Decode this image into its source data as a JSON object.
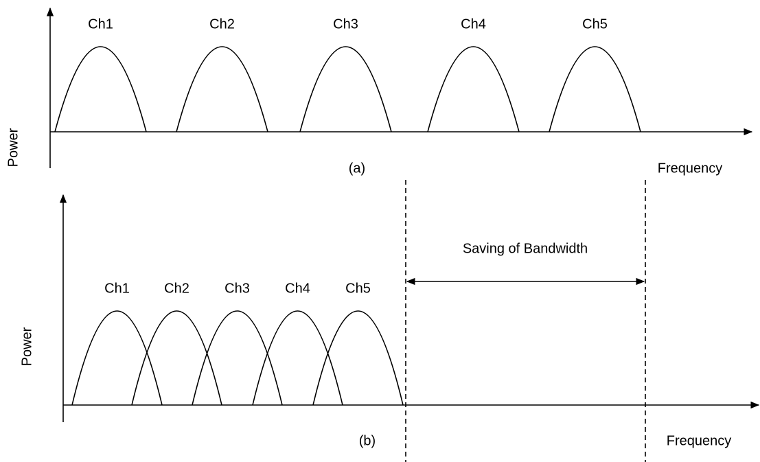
{
  "panel_a": {
    "channels": [
      "Ch1",
      "Ch2",
      "Ch3",
      "Ch4",
      "Ch5"
    ],
    "y_label": "Power",
    "x_label": "Frequency",
    "caption": "(a)"
  },
  "panel_b": {
    "channels": [
      "Ch1",
      "Ch2",
      "Ch3",
      "Ch4",
      "Ch5"
    ],
    "y_label": "Power",
    "x_label": "Frequency",
    "caption": "(b)",
    "annotation": "Saving of Bandwidth"
  }
}
